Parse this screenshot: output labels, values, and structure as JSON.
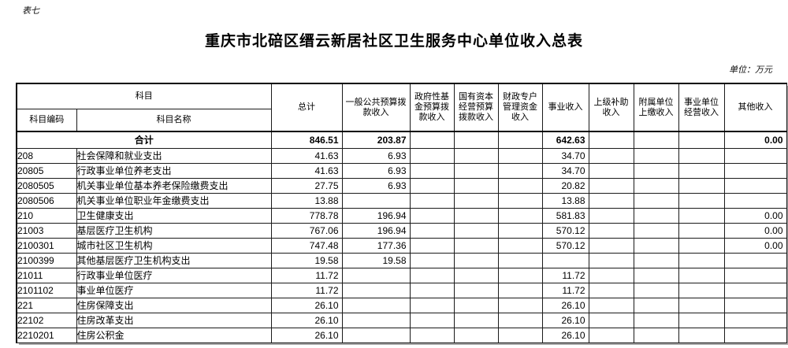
{
  "page": {
    "corner_label": "表七",
    "title": "重庆市北碚区缙云新居社区卫生服务中心单位收入总表",
    "unit_note": "单位：万元"
  },
  "table": {
    "header": {
      "subject_group": "科目",
      "subject_code": "科目编码",
      "subject_name": "科目名称",
      "columns": [
        "总计",
        "一般公共预算拨款收入",
        "政府性基金预算拨款收入",
        "国有资本经营预算拨款收入",
        "财政专户管理资金收入",
        "事业收入",
        "上级补助收入",
        "附属单位上缴收入",
        "事业单位经营收入",
        "其他收入"
      ]
    },
    "total_row": {
      "label": "合计",
      "values": [
        "846.51",
        "203.87",
        "",
        "",
        "",
        "642.63",
        "",
        "",
        "",
        "0.00"
      ]
    },
    "rows": [
      {
        "code": "208",
        "name": "社会保障和就业支出",
        "indent": 0,
        "values": [
          "41.63",
          "6.93",
          "",
          "",
          "",
          "34.70",
          "",
          "",
          "",
          ""
        ]
      },
      {
        "code": "20805",
        "name": "行政事业单位养老支出",
        "indent": 1,
        "values": [
          "41.63",
          "6.93",
          "",
          "",
          "",
          "34.70",
          "",
          "",
          "",
          ""
        ]
      },
      {
        "code": "2080505",
        "name": "机关事业单位基本养老保险缴费支出",
        "indent": 2,
        "values": [
          "27.75",
          "6.93",
          "",
          "",
          "",
          "20.82",
          "",
          "",
          "",
          ""
        ]
      },
      {
        "code": "2080506",
        "name": "机关事业单位职业年金缴费支出",
        "indent": 2,
        "values": [
          "13.88",
          "",
          "",
          "",
          "",
          "13.88",
          "",
          "",
          "",
          ""
        ]
      },
      {
        "code": "210",
        "name": "卫生健康支出",
        "indent": 0,
        "values": [
          "778.78",
          "196.94",
          "",
          "",
          "",
          "581.83",
          "",
          "",
          "",
          "0.00"
        ]
      },
      {
        "code": "21003",
        "name": "基层医疗卫生机构",
        "indent": 1,
        "values": [
          "767.06",
          "196.94",
          "",
          "",
          "",
          "570.12",
          "",
          "",
          "",
          "0.00"
        ]
      },
      {
        "code": "2100301",
        "name": "城市社区卫生机构",
        "indent": 2,
        "values": [
          "747.48",
          "177.36",
          "",
          "",
          "",
          "570.12",
          "",
          "",
          "",
          "0.00"
        ]
      },
      {
        "code": "2100399",
        "name": "其他基层医疗卫生机构支出",
        "indent": 2,
        "values": [
          "19.58",
          "19.58",
          "",
          "",
          "",
          "",
          "",
          "",
          "",
          ""
        ]
      },
      {
        "code": "21011",
        "name": "行政事业单位医疗",
        "indent": 1,
        "values": [
          "11.72",
          "",
          "",
          "",
          "",
          "11.72",
          "",
          "",
          "",
          ""
        ]
      },
      {
        "code": "2101102",
        "name": "事业单位医疗",
        "indent": 2,
        "values": [
          "11.72",
          "",
          "",
          "",
          "",
          "11.72",
          "",
          "",
          "",
          ""
        ]
      },
      {
        "code": "221",
        "name": "住房保障支出",
        "indent": 0,
        "values": [
          "26.10",
          "",
          "",
          "",
          "",
          "26.10",
          "",
          "",
          "",
          ""
        ]
      },
      {
        "code": "22102",
        "name": "住房改革支出",
        "indent": 1,
        "values": [
          "26.10",
          "",
          "",
          "",
          "",
          "26.10",
          "",
          "",
          "",
          ""
        ]
      },
      {
        "code": "2210201",
        "name": "住房公积金",
        "indent": 2,
        "values": [
          "26.10",
          "",
          "",
          "",
          "",
          "26.10",
          "",
          "",
          "",
          ""
        ]
      }
    ]
  }
}
